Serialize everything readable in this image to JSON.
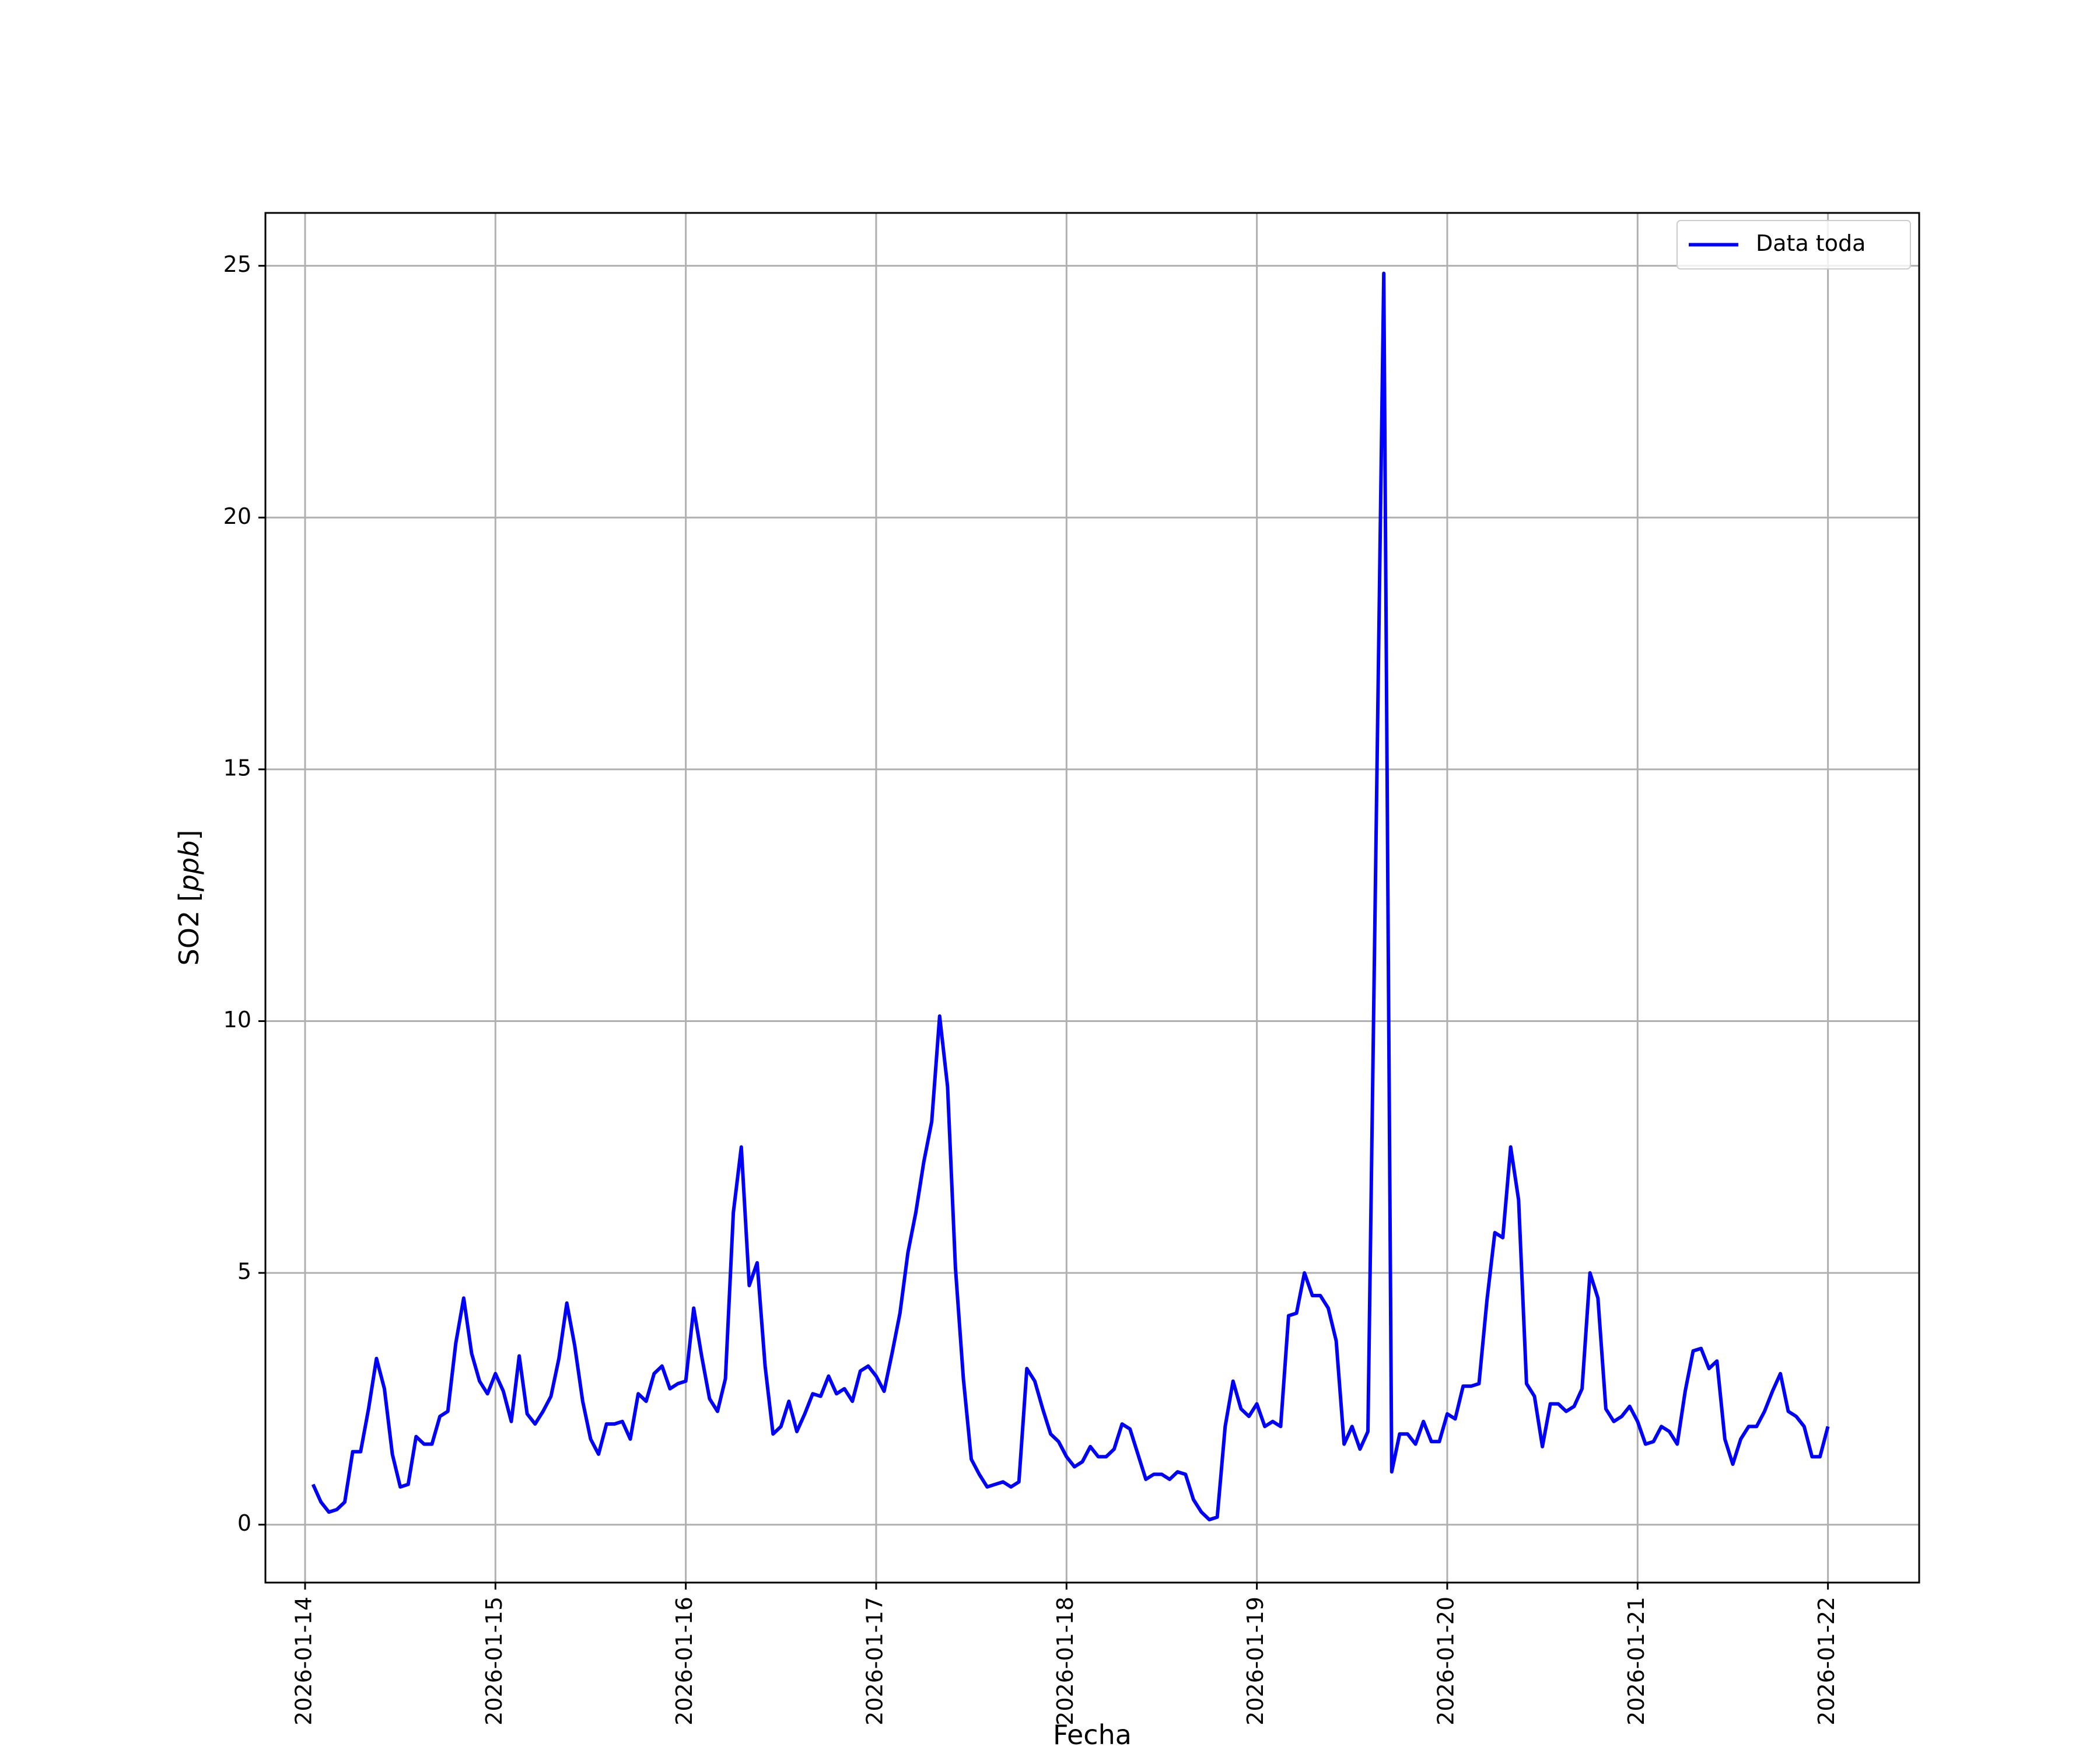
{
  "chart_data": {
    "type": "line",
    "title": "",
    "xlabel": "Fecha",
    "ylabel": "SO2 [ppb]",
    "ylabel_main": "SO2 [",
    "ylabel_unit": "ppb",
    "ylabel_close": "]",
    "x_start": "2026-01-14T01:00",
    "x_step_hours": 1,
    "x_ticks": [
      "2026-01-14",
      "2026-01-15",
      "2026-01-16",
      "2026-01-17",
      "2026-01-18",
      "2026-01-19",
      "2026-01-20",
      "2026-01-21",
      "2026-01-22"
    ],
    "xlim": [
      "2026-01-13T19:00",
      "2026-01-22T11:30"
    ],
    "y_ticks": [
      "0",
      "5",
      "10",
      "15",
      "20",
      "25"
    ],
    "ylim": [
      -1.15,
      26.05
    ],
    "grid": true,
    "legend_position": "top-right",
    "line_color": "#0000ff",
    "grid_color": "#b0b0b0",
    "series": [
      {
        "name": "Data toda",
        "values": [
          0.8,
          0.45,
          0.25,
          0.3,
          0.45,
          1.45,
          1.45,
          2.3,
          3.3,
          2.7,
          1.4,
          0.75,
          0.8,
          1.75,
          1.6,
          1.6,
          2.15,
          2.25,
          3.6,
          4.5,
          3.4,
          2.85,
          2.6,
          3.0,
          2.65,
          2.05,
          3.35,
          2.2,
          2.0,
          2.25,
          2.55,
          3.3,
          4.4,
          3.55,
          2.45,
          1.7,
          1.4,
          2.0,
          2.0,
          2.05,
          1.7,
          2.6,
          2.45,
          3.0,
          3.15,
          2.7,
          2.8,
          2.85,
          4.3,
          3.35,
          2.5,
          2.25,
          2.9,
          6.2,
          7.5,
          4.75,
          5.2,
          3.15,
          1.8,
          1.95,
          2.45,
          1.85,
          2.2,
          2.6,
          2.55,
          2.95,
          2.6,
          2.7,
          2.45,
          3.05,
          3.15,
          2.95,
          2.65,
          3.4,
          4.2,
          5.4,
          6.2,
          7.2,
          8.0,
          10.1,
          8.7,
          5.1,
          2.9,
          1.3,
          1.0,
          0.75,
          0.8,
          0.85,
          0.75,
          0.85,
          3.1,
          2.85,
          2.3,
          1.8,
          1.65,
          1.35,
          1.15,
          1.25,
          1.55,
          1.35,
          1.35,
          1.5,
          2.0,
          1.9,
          1.4,
          0.9,
          1.0,
          1.0,
          0.9,
          1.05,
          1.0,
          0.5,
          0.25,
          0.1,
          0.15,
          1.95,
          2.85,
          2.3,
          2.15,
          2.4,
          1.95,
          2.05,
          1.95,
          4.15,
          4.2,
          5.0,
          4.55,
          4.55,
          4.3,
          3.65,
          1.6,
          1.95,
          1.5,
          1.85,
          null,
          24.85,
          1.05,
          1.8,
          1.8,
          1.6,
          2.05,
          1.65,
          1.65,
          2.2,
          2.1,
          2.75,
          2.75,
          2.8,
          4.45,
          5.8,
          5.7,
          7.5,
          6.45,
          2.8,
          2.55,
          1.55,
          2.4,
          2.4,
          2.25,
          2.35,
          2.7,
          5.0,
          4.5,
          2.3,
          2.05,
          2.15,
          2.35,
          2.05,
          1.6,
          1.65,
          1.95,
          1.85,
          1.6,
          2.65,
          3.45,
          3.5,
          3.1,
          3.25,
          1.7,
          1.2,
          1.7,
          1.95,
          1.95,
          2.25,
          2.65,
          3.0,
          2.25,
          2.15,
          1.95,
          1.35,
          1.35,
          1.95
        ]
      }
    ]
  }
}
